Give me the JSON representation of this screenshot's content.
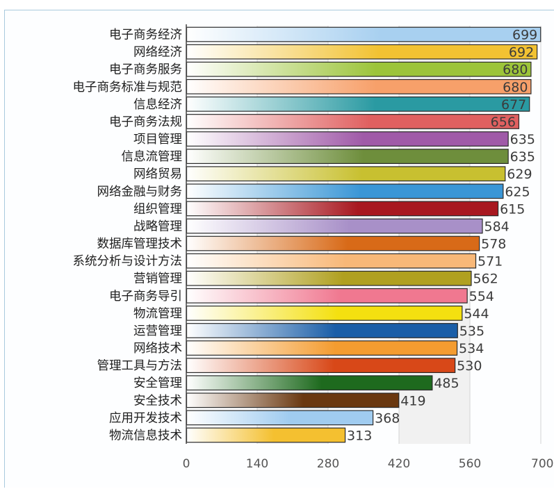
{
  "chart_data": {
    "type": "bar",
    "orientation": "horizontal",
    "title": "",
    "xlabel": "",
    "ylabel": "",
    "xlim": [
      0,
      700
    ],
    "ticks": [
      "0",
      "140",
      "280",
      "420",
      "560",
      "700"
    ],
    "grid": "vertical",
    "legend": "none",
    "categories": [
      "电子商务经济",
      "网络经济",
      "电子商务服务",
      "电子商务标准与规范",
      "信息经济",
      "电子商务法规",
      "项目管理",
      "信息流管理",
      "网络贸易",
      "网络金融与财务",
      "组织管理",
      "战略管理",
      "数据库管理技术",
      "系统分析与设计方法",
      "营销管理",
      "电子商务导引",
      "物流管理",
      "运营管理",
      "网络技术",
      "管理工具与方法",
      "安全管理",
      "安全技术",
      "应用开发技术",
      "物流信息技术"
    ],
    "values": [
      699,
      692,
      680,
      680,
      677,
      656,
      635,
      635,
      629,
      625,
      615,
      584,
      578,
      571,
      562,
      554,
      544,
      535,
      534,
      530,
      485,
      419,
      368,
      313
    ],
    "value_labels": [
      "699",
      "692",
      "680",
      "680",
      "677",
      "656",
      "635",
      "635",
      "629",
      "625",
      "615",
      "584",
      "578",
      "571",
      "562",
      "554",
      "544",
      "535",
      "534",
      "530",
      "485",
      "419",
      "368",
      "313"
    ],
    "colors": [
      "#a8d0f0",
      "#f2c232",
      "#9cc43a",
      "#f7a06a",
      "#2a9aa2",
      "#e06060",
      "#a05aa8",
      "#6e8e3c",
      "#c8c030",
      "#3a96d6",
      "#a81820",
      "#a890c8",
      "#d86a18",
      "#f8b878",
      "#b0a020",
      "#f07890",
      "#f4e010",
      "#1a5ea8",
      "#f49c30",
      "#d84818",
      "#1e6a1e",
      "#6a3810",
      "#a0ccf0",
      "#f4c030"
    ]
  }
}
